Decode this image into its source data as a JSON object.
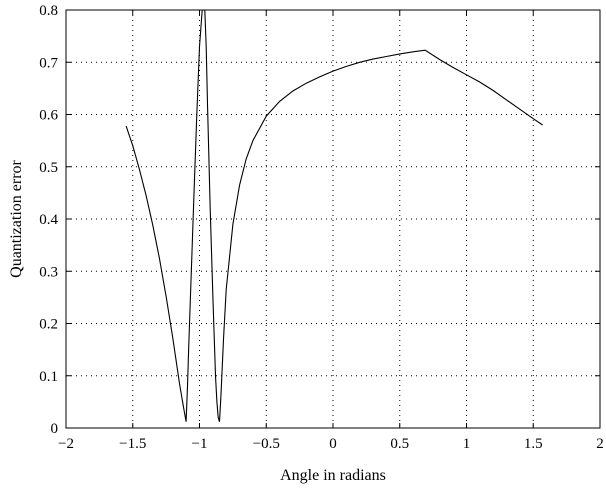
{
  "chart_data": {
    "type": "line",
    "title": "",
    "xlabel": "Angle in radians",
    "ylabel": "Quantization error",
    "xlim": [
      -2,
      2
    ],
    "ylim": [
      0,
      0.8
    ],
    "grid": true,
    "x_ticks": [
      "−2",
      "−1.5",
      "−1",
      "−0.5",
      "0",
      "0.5",
      "1",
      "1.5",
      "2"
    ],
    "y_ticks": [
      "0",
      "0.1",
      "0.2",
      "0.3",
      "0.4",
      "0.5",
      "0.6",
      "0.7",
      "0.8"
    ],
    "series": [
      {
        "x": [
          -1.55,
          -1.5,
          -1.45,
          -1.4,
          -1.35,
          -1.3,
          -1.25,
          -1.2,
          -1.15,
          -1.12,
          -1.1,
          -1.09,
          -1.08,
          -1.06,
          -1.04,
          -1.02,
          -1.0,
          -0.98,
          -0.97,
          -0.96,
          -0.95,
          -0.94,
          -0.92,
          -0.9,
          -0.88,
          -0.87,
          -0.86,
          -0.85,
          -0.84,
          -0.82,
          -0.8,
          -0.75,
          -0.7,
          -0.65,
          -0.6,
          -0.5,
          -0.4,
          -0.3,
          -0.2,
          -0.1,
          0.0,
          0.1,
          0.2,
          0.3,
          0.4,
          0.5,
          0.6,
          0.69,
          0.8,
          0.9,
          1.0,
          1.1,
          1.2,
          1.3,
          1.4,
          1.5,
          1.57
        ],
        "y": [
          0.578,
          0.54,
          0.495,
          0.445,
          0.388,
          0.325,
          0.252,
          0.172,
          0.085,
          0.04,
          0.012,
          0.08,
          0.16,
          0.31,
          0.46,
          0.6,
          0.73,
          0.8,
          0.8,
          0.8,
          0.73,
          0.62,
          0.42,
          0.25,
          0.1,
          0.05,
          0.02,
          0.012,
          0.06,
          0.17,
          0.265,
          0.39,
          0.465,
          0.515,
          0.55,
          0.597,
          0.625,
          0.645,
          0.66,
          0.672,
          0.683,
          0.692,
          0.7,
          0.706,
          0.711,
          0.716,
          0.72,
          0.723,
          0.705,
          0.69,
          0.676,
          0.662,
          0.646,
          0.628,
          0.61,
          0.592,
          0.58
        ]
      }
    ]
  }
}
